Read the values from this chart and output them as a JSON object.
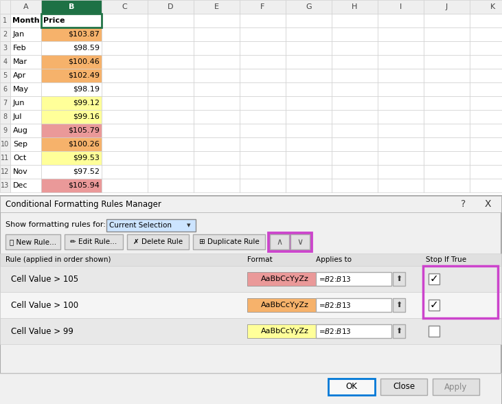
{
  "months": [
    "Jan",
    "Feb",
    "Mar",
    "Apr",
    "May",
    "Jun",
    "Jul",
    "Aug",
    "Sep",
    "Oct",
    "Nov",
    "Dec"
  ],
  "prices": [
    103.87,
    98.59,
    100.46,
    102.49,
    98.19,
    99.12,
    99.16,
    105.79,
    100.26,
    99.53,
    97.52,
    105.94
  ],
  "spreadsheet_bg": "#ffffff",
  "header_bg": "#efefef",
  "selected_col_header_bg": "#1e7145",
  "selected_col_header_fg": "#ffffff",
  "grid_color": "#d0d0d0",
  "color_gt105": "#ea9999",
  "color_gt100": "#f6b26b",
  "color_gt99": "#ffff99",
  "selected_cell_border": "#217346",
  "dialog_bg": "#f0f0f0",
  "dialog_title": "Conditional Formatting Rules Manager",
  "rule1_label": "Cell Value > 105",
  "rule2_label": "Cell Value > 100",
  "rule3_label": "Cell Value > 99",
  "format_text": "AaBbCcYyZz",
  "applies_to": "=$B$2:$B$13",
  "col_header_labels": [
    "Rule (applied in order shown)",
    "Format",
    "Applies to",
    "Stop If True"
  ],
  "row1_header_A": "Month",
  "row1_header_B": "Price",
  "highlight_border": "#cc44cc",
  "btn_bg": "#e1e1e1",
  "ok_btn_border": "#0078d7",
  "dropdown_bg": "#cce4ff",
  "dropdown_text": "Current Selection"
}
